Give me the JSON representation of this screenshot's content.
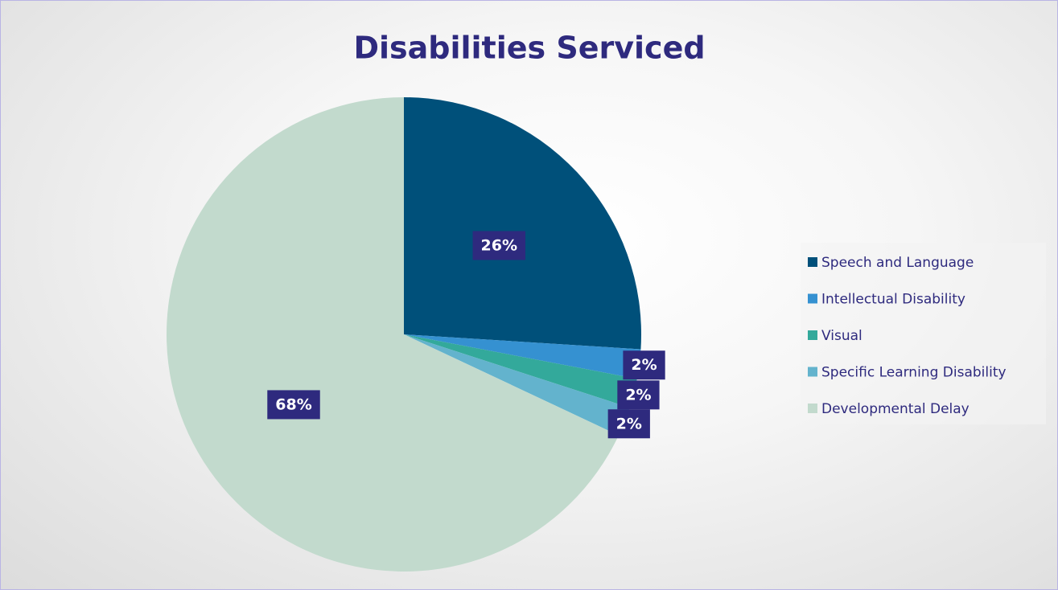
{
  "chart_data": {
    "type": "pie",
    "title": "Disabilities Serviced",
    "categories": [
      "Speech and Language",
      "Intellectual Disability",
      "Visual",
      "Specific Learning Disability",
      "Developmental Delay"
    ],
    "values": [
      26,
      2,
      2,
      2,
      68
    ],
    "value_labels": [
      "26%",
      "2%",
      "2%",
      "2%",
      "68%"
    ],
    "colors": [
      "#00507a",
      "#3591d1",
      "#33a99b",
      "#63b3cd",
      "#c2dacd"
    ],
    "legend": "right"
  }
}
